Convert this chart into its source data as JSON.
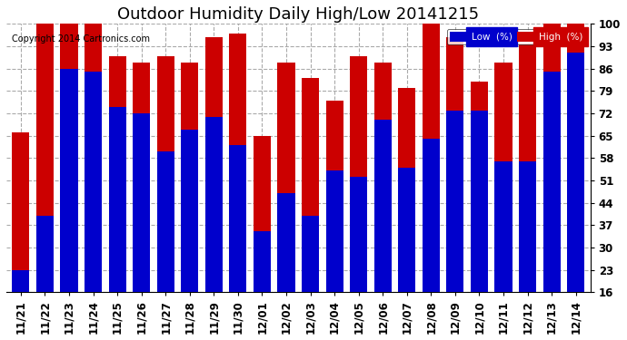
{
  "title": "Outdoor Humidity Daily High/Low 20141215",
  "copyright": "Copyright 2014 Cartronics.com",
  "categories": [
    "11/21",
    "11/22",
    "11/23",
    "11/24",
    "11/25",
    "11/26",
    "11/27",
    "11/28",
    "11/29",
    "11/30",
    "12/01",
    "12/02",
    "12/03",
    "12/04",
    "12/05",
    "12/06",
    "12/07",
    "12/08",
    "12/09",
    "12/10",
    "12/11",
    "12/12",
    "12/13",
    "12/14"
  ],
  "low_values": [
    23,
    40,
    86,
    85,
    74,
    72,
    60,
    67,
    71,
    62,
    35,
    47,
    40,
    54,
    52,
    70,
    55,
    64,
    73,
    73,
    57,
    57,
    85,
    91
  ],
  "high_values": [
    66,
    100,
    100,
    100,
    90,
    88,
    90,
    88,
    96,
    97,
    65,
    88,
    83,
    76,
    90,
    88,
    80,
    100,
    96,
    82,
    88,
    94,
    100,
    100
  ],
  "low_color": "#0000cc",
  "high_color": "#cc0000",
  "bg_color": "#ffffff",
  "plot_bg_color": "#ffffff",
  "grid_color": "#aaaaaa",
  "ylim": [
    16,
    100
  ],
  "yticks": [
    16,
    23,
    30,
    37,
    44,
    51,
    58,
    65,
    72,
    79,
    86,
    93,
    100
  ],
  "title_fontsize": 13,
  "tick_fontsize": 8.5,
  "legend_low_color": "#0000cc",
  "legend_high_color": "#cc0000",
  "legend_low_text": "Low  (%)",
  "legend_high_text": "High  (%)"
}
